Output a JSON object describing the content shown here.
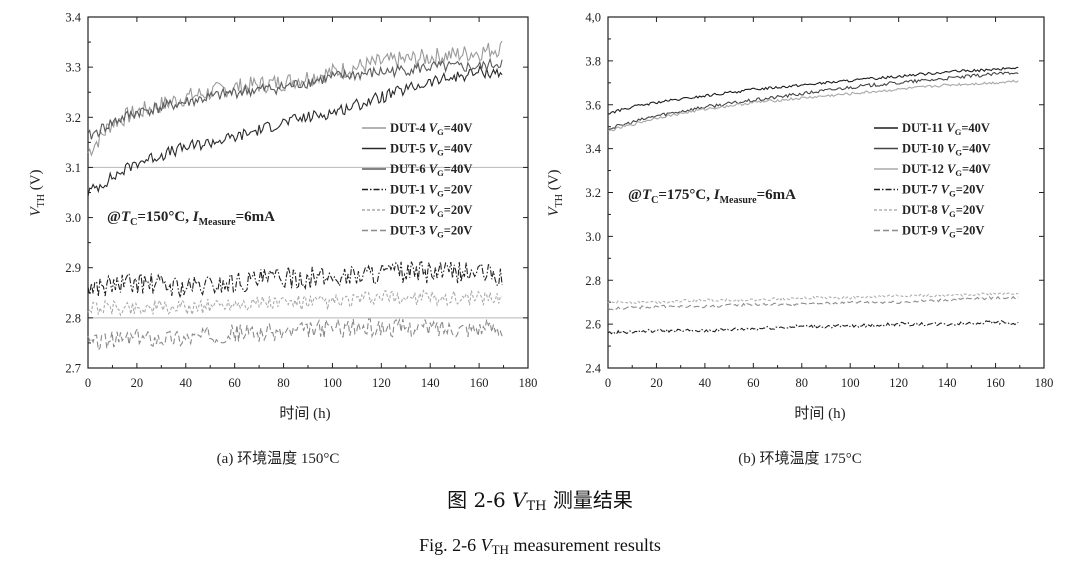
{
  "chart_data": [
    {
      "type": "line",
      "panel_caption": "(a) 环境温度 150°C",
      "annotation": {
        "pre": "@",
        "T": "T",
        "T_sub": "C",
        "mid": "=150°C, ",
        "I": "I",
        "I_sub": "Measure",
        "post": "=6mA"
      },
      "xlabel": "时间 (h)",
      "ylabel": {
        "main": "V",
        "sub": "TH",
        "unit": " (V)"
      },
      "xlim": [
        0,
        180
      ],
      "ylim": [
        2.7,
        3.4
      ],
      "xticks": [
        0,
        20,
        40,
        60,
        80,
        100,
        120,
        140,
        160,
        180
      ],
      "yticks": [
        2.7,
        2.8,
        2.9,
        3.0,
        3.1,
        3.2,
        3.3,
        3.4
      ],
      "ytick_labels": [
        "2.7",
        "2.8",
        "2.9",
        "3.0",
        "3.1",
        "3.2",
        "3.3",
        "3.4"
      ],
      "hgrid": [
        2.8,
        3.1
      ],
      "legend_position": "right",
      "series": [
        {
          "name": "DUT-4 V_G=40V",
          "dut": "DUT-4",
          "vg": "=40V",
          "color": "#9a9a9a",
          "dash": "",
          "noise": 0.018,
          "x": [
            0,
            10,
            20,
            40,
            60,
            80,
            100,
            120,
            140,
            160,
            170
          ],
          "y": [
            3.13,
            3.19,
            3.21,
            3.24,
            3.26,
            3.27,
            3.29,
            3.31,
            3.32,
            3.33,
            3.34
          ]
        },
        {
          "name": "DUT-5 V_G=40V",
          "dut": "DUT-5",
          "vg": "=40V",
          "color": "#2a2a2a",
          "dash": "",
          "noise": 0.012,
          "x": [
            0,
            10,
            20,
            40,
            60,
            80,
            100,
            120,
            140,
            160,
            170
          ],
          "y": [
            3.05,
            3.08,
            3.11,
            3.14,
            3.16,
            3.19,
            3.21,
            3.24,
            3.27,
            3.29,
            3.29
          ]
        },
        {
          "name": "DUT-6 V_G=40V",
          "dut": "DUT-6",
          "vg": "=40V",
          "color": "#5a5a5a",
          "dash": "",
          "noise": 0.012,
          "x": [
            0,
            10,
            20,
            40,
            60,
            80,
            100,
            120,
            140,
            160,
            170
          ],
          "y": [
            3.16,
            3.19,
            3.21,
            3.23,
            3.25,
            3.26,
            3.28,
            3.29,
            3.3,
            3.3,
            3.31
          ]
        },
        {
          "name": "DUT-1 V_G=20V",
          "dut": "DUT-1",
          "vg": "=20V",
          "color": "#1e1e1e",
          "dash": "6,2,1.5,2",
          "noise": 0.022,
          "x": [
            0,
            20,
            40,
            60,
            80,
            100,
            120,
            140,
            160,
            170
          ],
          "y": [
            2.86,
            2.87,
            2.86,
            2.87,
            2.88,
            2.88,
            2.89,
            2.89,
            2.89,
            2.88
          ]
        },
        {
          "name": "DUT-2 V_G=20V",
          "dut": "DUT-2",
          "vg": "=20V",
          "color": "#aaaaaa",
          "dash": "3,2",
          "noise": 0.015,
          "x": [
            0,
            20,
            40,
            60,
            80,
            100,
            120,
            140,
            160,
            170
          ],
          "y": [
            2.82,
            2.82,
            2.82,
            2.83,
            2.83,
            2.83,
            2.84,
            2.84,
            2.84,
            2.84
          ]
        },
        {
          "name": "DUT-3 V_G=20V",
          "dut": "DUT-3",
          "vg": "=20V",
          "color": "#8a8a8a",
          "dash": "6,3",
          "noise": 0.018,
          "x": [
            0,
            20,
            40,
            60,
            80,
            100,
            120,
            140,
            160,
            170
          ],
          "y": [
            2.75,
            2.76,
            2.76,
            2.77,
            2.77,
            2.78,
            2.78,
            2.78,
            2.78,
            2.78
          ]
        }
      ]
    },
    {
      "type": "line",
      "panel_caption": "(b) 环境温度 175°C",
      "annotation": {
        "pre": "@",
        "T": "T",
        "T_sub": "C",
        "mid": "=175°C, ",
        "I": "I",
        "I_sub": "Measure",
        "post": "=6mA"
      },
      "xlabel": "时间 (h)",
      "ylabel": {
        "main": "V",
        "sub": "TH",
        "unit": " (V)"
      },
      "xlim": [
        0,
        180
      ],
      "ylim": [
        2.4,
        4.0
      ],
      "xticks": [
        0,
        20,
        40,
        60,
        80,
        100,
        120,
        140,
        160,
        180
      ],
      "yticks": [
        2.4,
        2.6,
        2.8,
        3.0,
        3.2,
        3.4,
        3.6,
        3.8,
        4.0
      ],
      "ytick_labels": [
        "2.4",
        "2.6",
        "2.8",
        "3.0",
        "3.2",
        "3.4",
        "3.6",
        "3.8",
        "4,0"
      ],
      "hgrid": [],
      "legend_position": "right",
      "series": [
        {
          "name": "DUT-11 V_G=40V",
          "dut": "DUT-11",
          "vg": "=40V",
          "color": "#1e1e1e",
          "dash": "",
          "noise": 0.006,
          "x": [
            0,
            10,
            20,
            40,
            60,
            80,
            100,
            120,
            140,
            160,
            170
          ],
          "y": [
            3.56,
            3.59,
            3.61,
            3.64,
            3.67,
            3.69,
            3.71,
            3.73,
            3.75,
            3.76,
            3.77
          ]
        },
        {
          "name": "DUT-10 V_G=40V",
          "dut": "DUT-10",
          "vg": "=40V",
          "color": "#444444",
          "dash": "",
          "noise": 0.008,
          "x": [
            0,
            10,
            20,
            40,
            60,
            80,
            100,
            120,
            140,
            160,
            170
          ],
          "y": [
            3.49,
            3.52,
            3.55,
            3.59,
            3.62,
            3.65,
            3.68,
            3.7,
            3.72,
            3.74,
            3.75
          ]
        },
        {
          "name": "DUT-12 V_G=40V",
          "dut": "DUT-12",
          "vg": "=40V",
          "color": "#a8a8a8",
          "dash": "",
          "noise": 0.006,
          "x": [
            0,
            10,
            20,
            40,
            60,
            80,
            100,
            120,
            140,
            160,
            170
          ],
          "y": [
            3.48,
            3.51,
            3.54,
            3.58,
            3.61,
            3.63,
            3.65,
            3.67,
            3.69,
            3.7,
            3.71
          ]
        },
        {
          "name": "DUT-7 V_G=20V",
          "dut": "DUT-7",
          "vg": "=20V",
          "color": "#1e1e1e",
          "dash": "6,2,1.5,2",
          "noise": 0.008,
          "x": [
            0,
            20,
            40,
            60,
            80,
            100,
            120,
            140,
            160,
            170
          ],
          "y": [
            2.56,
            2.57,
            2.57,
            2.58,
            2.59,
            2.59,
            2.6,
            2.6,
            2.61,
            2.6
          ]
        },
        {
          "name": "DUT-8 V_G=20V",
          "dut": "DUT-8",
          "vg": "=20V",
          "color": "#b0b0b0",
          "dash": "3,2",
          "noise": 0.006,
          "x": [
            0,
            20,
            40,
            60,
            80,
            100,
            120,
            140,
            160,
            170
          ],
          "y": [
            2.7,
            2.7,
            2.71,
            2.71,
            2.72,
            2.72,
            2.73,
            2.73,
            2.74,
            2.74
          ]
        },
        {
          "name": "DUT-9 V_G=20V",
          "dut": "DUT-9",
          "vg": "=20V",
          "color": "#8c8c8c",
          "dash": "6,3",
          "noise": 0.006,
          "x": [
            0,
            20,
            40,
            60,
            80,
            100,
            120,
            140,
            160,
            170
          ],
          "y": [
            2.67,
            2.68,
            2.68,
            2.69,
            2.69,
            2.7,
            2.7,
            2.71,
            2.72,
            2.72
          ]
        }
      ]
    }
  ],
  "caption": {
    "cn_prefix": "图 2-6 ",
    "v": "V",
    "v_sub": "TH",
    "cn_suffix": " 测量结果",
    "en_prefix": "Fig. 2-6 ",
    "en_suffix": " measurement results"
  }
}
